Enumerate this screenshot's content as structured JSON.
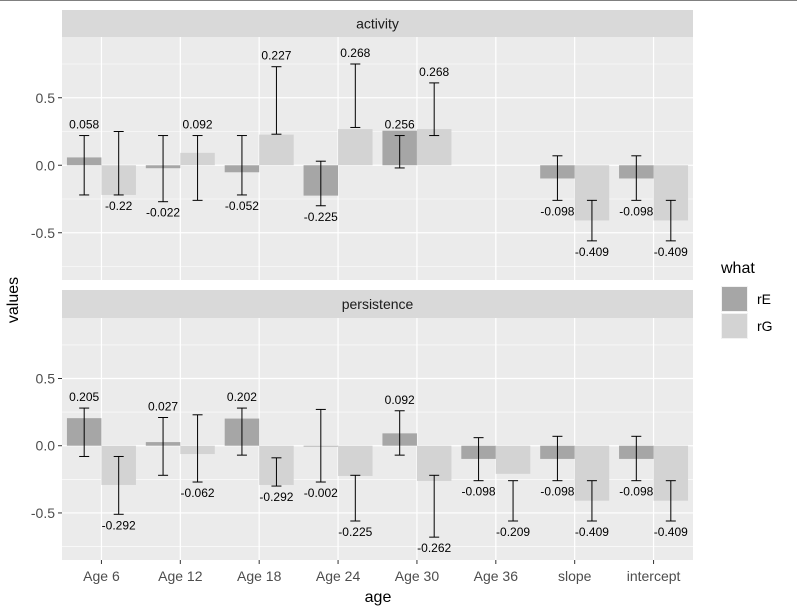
{
  "chart_data": {
    "type": "bar",
    "xlabel": "age",
    "ylabel": "values",
    "ylim": [
      -0.85,
      0.95
    ],
    "yticks": [
      -0.5,
      0.0,
      0.5
    ],
    "ytick_labels": [
      "-0.5",
      "0.0",
      "0.5"
    ],
    "categories": [
      "Age 6",
      "Age 12",
      "Age 18",
      "Age 24",
      "Age 30",
      "Age 36",
      "slope",
      "intercept"
    ],
    "legend": {
      "title": "what",
      "placement": "right",
      "entries": [
        {
          "name": "rE",
          "color": "#a6a6a6"
        },
        {
          "name": "rG",
          "color": "#d3d3d3"
        }
      ]
    },
    "colors": {
      "rE": "#a6a6a6",
      "rG": "#d3d3d3",
      "panel_bg": "#ebebeb",
      "strip_bg": "#d9d9d9",
      "grid": "#ffffff"
    },
    "panels": [
      {
        "title": "activity",
        "series": [
          {
            "name": "rE",
            "values": [
              0.058,
              -0.022,
              -0.052,
              -0.225,
              0.256,
              null,
              -0.098,
              -0.098
            ],
            "labels": [
              "0.058",
              "-0.022",
              "-0.052",
              "-0.225",
              "0.256",
              null,
              "-0.098",
              "-0.098"
            ],
            "err_low": [
              -0.22,
              -0.27,
              -0.22,
              -0.3,
              -0.02,
              null,
              -0.26,
              -0.26
            ],
            "err_high": [
              0.22,
              0.22,
              0.22,
              0.03,
              0.22,
              null,
              0.07,
              0.07
            ]
          },
          {
            "name": "rG",
            "values": [
              -0.22,
              0.092,
              0.227,
              0.268,
              0.268,
              null,
              -0.409,
              -0.409
            ],
            "labels": [
              "-0.22",
              "0.092",
              "0.227",
              "0.268",
              "0.268",
              null,
              "-0.409",
              "-0.409"
            ],
            "err_low": [
              -0.22,
              -0.26,
              0.23,
              0.28,
              0.22,
              null,
              -0.56,
              -0.56
            ],
            "err_high": [
              0.25,
              0.22,
              0.73,
              0.75,
              0.61,
              null,
              -0.26,
              -0.26
            ]
          }
        ]
      },
      {
        "title": "persistence",
        "series": [
          {
            "name": "rE",
            "values": [
              0.205,
              0.027,
              0.202,
              -0.002,
              0.092,
              -0.098,
              -0.098,
              -0.098
            ],
            "labels": [
              "0.205",
              "0.027",
              "0.202",
              "-0.002",
              "0.092",
              "-0.098",
              "-0.098",
              "-0.098"
            ],
            "err_low": [
              -0.08,
              -0.22,
              -0.07,
              -0.27,
              -0.07,
              -0.26,
              -0.26,
              -0.26
            ],
            "err_high": [
              0.28,
              0.21,
              0.28,
              0.27,
              0.26,
              0.06,
              0.07,
              0.07
            ]
          },
          {
            "name": "rG",
            "values": [
              -0.292,
              -0.062,
              -0.292,
              -0.225,
              -0.262,
              -0.209,
              -0.409,
              -0.409
            ],
            "labels": [
              "-0.292",
              "-0.062",
              "-0.292",
              "-0.225",
              "-0.262",
              "-0.209",
              "-0.409",
              "-0.409"
            ],
            "err_low": [
              -0.51,
              -0.27,
              -0.3,
              -0.56,
              -0.68,
              -0.56,
              -0.56,
              -0.56
            ],
            "err_high": [
              -0.08,
              0.23,
              -0.09,
              -0.22,
              -0.22,
              -0.26,
              -0.26,
              -0.26
            ]
          }
        ]
      }
    ]
  }
}
